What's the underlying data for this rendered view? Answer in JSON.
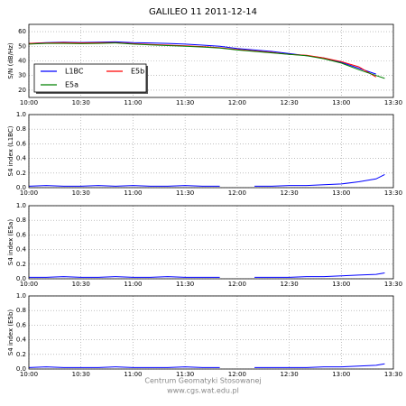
{
  "title": "GALILEO 11 2011-12-14",
  "footer": [
    "Centrum Geomatyki Stosowanej",
    "www.cgs.wat.edu.pl"
  ],
  "chart_data": [
    {
      "type": "line",
      "ylabel": "S/N (dB/Hz)",
      "legend": "lower left",
      "grid": true,
      "x": [
        "10:00",
        "10:10",
        "10:20",
        "10:30",
        "10:40",
        "10:50",
        "11:00",
        "11:10",
        "11:20",
        "11:30",
        "11:40",
        "11:50",
        "12:00",
        "12:10",
        "12:20",
        "12:30",
        "12:40",
        "12:50",
        "13:00",
        "13:10",
        "13:20",
        "13:25"
      ],
      "series": [
        {
          "name": "L1BC",
          "color": "#0000ff",
          "values": [
            52,
            52.5,
            52.8,
            52.6,
            52.8,
            53,
            52.5,
            52.3,
            52,
            51.5,
            50.8,
            50,
            48.5,
            47.5,
            46.5,
            45,
            43.5,
            42,
            39,
            35,
            31,
            null
          ]
        },
        {
          "name": "E5b",
          "color": "#ff0000",
          "values": [
            52,
            52.3,
            52.5,
            52.3,
            52.4,
            52.5,
            51.8,
            51.3,
            50.8,
            50.3,
            49.8,
            49,
            47.8,
            46.8,
            45.8,
            44.5,
            43.8,
            42,
            39.5,
            36,
            29,
            null
          ]
        },
        {
          "name": "E5a",
          "color": "#008000",
          "values": [
            51.5,
            52,
            52,
            51.8,
            52,
            52.3,
            51.5,
            51,
            50.5,
            50,
            49.5,
            48.8,
            47.5,
            46.5,
            45.5,
            44.5,
            43.5,
            41.5,
            38.5,
            34,
            30,
            28
          ]
        }
      ],
      "xlim": [
        "10:00",
        "13:30"
      ],
      "xticks": [
        "10:00",
        "10:30",
        "11:00",
        "11:30",
        "12:00",
        "12:30",
        "13:00",
        "13:30"
      ],
      "ylim": [
        15,
        65
      ],
      "yticks": [
        20,
        30,
        40,
        50,
        60
      ]
    },
    {
      "type": "line",
      "ylabel": "S4 index (L1BC)",
      "grid": true,
      "x": [
        "10:00",
        "10:10",
        "10:20",
        "10:30",
        "10:40",
        "10:50",
        "11:00",
        "11:10",
        "11:20",
        "11:30",
        "11:40",
        "11:50",
        "12:00",
        "12:10",
        "12:20",
        "12:30",
        "12:40",
        "12:50",
        "13:00",
        "13:10",
        "13:20",
        "13:25"
      ],
      "series": [
        {
          "color": "#0000ff",
          "values": [
            0.02,
            0.03,
            0.02,
            0.02,
            0.03,
            0.02,
            0.03,
            0.02,
            0.02,
            0.03,
            0.02,
            0.02,
            null,
            0.02,
            0.02,
            0.03,
            0.03,
            0.04,
            0.05,
            0.08,
            0.12,
            0.18
          ]
        }
      ],
      "xlim": [
        "10:00",
        "13:30"
      ],
      "xticks": [
        "10:00",
        "10:30",
        "11:00",
        "11:30",
        "12:00",
        "12:30",
        "13:00",
        "13:30"
      ],
      "ylim": [
        0,
        1
      ],
      "yticks": [
        {
          "value": 0,
          "label": "0.0"
        },
        {
          "value": 0.2,
          "label": "0.2"
        },
        {
          "value": 0.4,
          "label": "0.4"
        },
        {
          "value": 0.6,
          "label": "0.6"
        },
        {
          "value": 0.8,
          "label": "0.8"
        },
        {
          "value": 1,
          "label": "1.0"
        }
      ]
    },
    {
      "type": "line",
      "ylabel": "S4 index (E5a)",
      "grid": true,
      "x": [
        "10:00",
        "10:10",
        "10:20",
        "10:30",
        "10:40",
        "10:50",
        "11:00",
        "11:10",
        "11:20",
        "11:30",
        "11:40",
        "11:50",
        "12:00",
        "12:10",
        "12:20",
        "12:30",
        "12:40",
        "12:50",
        "13:00",
        "13:10",
        "13:20",
        "13:25"
      ],
      "series": [
        {
          "color": "#0000ff",
          "values": [
            0.02,
            0.02,
            0.03,
            0.02,
            0.02,
            0.03,
            0.02,
            0.02,
            0.03,
            0.02,
            0.02,
            0.02,
            null,
            0.02,
            0.02,
            0.02,
            0.03,
            0.03,
            0.04,
            0.05,
            0.06,
            0.08
          ]
        }
      ],
      "xlim": [
        "10:00",
        "13:30"
      ],
      "xticks": [
        "10:00",
        "10:30",
        "11:00",
        "11:30",
        "12:00",
        "12:30",
        "13:00",
        "13:30"
      ],
      "ylim": [
        0,
        1
      ],
      "yticks": [
        {
          "value": 0,
          "label": "0.0"
        },
        {
          "value": 0.2,
          "label": "0.2"
        },
        {
          "value": 0.4,
          "label": "0.4"
        },
        {
          "value": 0.6,
          "label": "0.6"
        },
        {
          "value": 0.8,
          "label": "0.8"
        },
        {
          "value": 1,
          "label": "1.0"
        }
      ]
    },
    {
      "type": "line",
      "ylabel": "S4 index (E5b)",
      "grid": true,
      "x": [
        "10:00",
        "10:10",
        "10:20",
        "10:30",
        "10:40",
        "10:50",
        "11:00",
        "11:10",
        "11:20",
        "11:30",
        "11:40",
        "11:50",
        "12:00",
        "12:10",
        "12:20",
        "12:30",
        "12:40",
        "12:50",
        "13:00",
        "13:10",
        "13:20",
        "13:25"
      ],
      "series": [
        {
          "color": "#0000ff",
          "values": [
            0.02,
            0.03,
            0.02,
            0.02,
            0.02,
            0.03,
            0.02,
            0.02,
            0.02,
            0.03,
            0.02,
            0.02,
            null,
            0.02,
            0.02,
            0.02,
            0.02,
            0.03,
            0.03,
            0.04,
            0.05,
            0.07
          ]
        }
      ],
      "xlim": [
        "10:00",
        "13:30"
      ],
      "xticks": [
        "10:00",
        "10:30",
        "11:00",
        "11:30",
        "12:00",
        "12:30",
        "13:00",
        "13:30"
      ],
      "ylim": [
        0,
        1
      ],
      "yticks": [
        {
          "value": 0,
          "label": "0.0"
        },
        {
          "value": 0.2,
          "label": "0.2"
        },
        {
          "value": 0.4,
          "label": "0.4"
        },
        {
          "value": 0.6,
          "label": "0.6"
        },
        {
          "value": 0.8,
          "label": "0.8"
        },
        {
          "value": 1,
          "label": "1.0"
        }
      ]
    }
  ]
}
